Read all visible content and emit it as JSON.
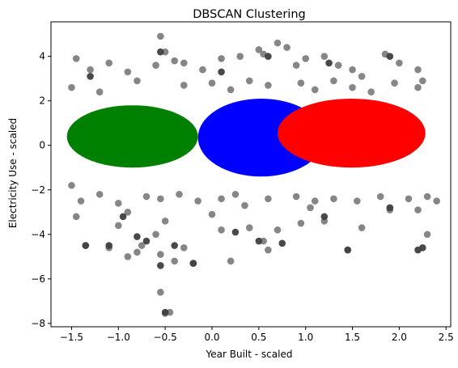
{
  "chart_data": {
    "type": "scatter",
    "title": "DBSCAN Clustering",
    "xlabel": "Year Built - scaled",
    "ylabel": "Electricity Use - scaled",
    "xlim": [
      -1.72,
      2.55
    ],
    "ylim": [
      -8.15,
      5.55
    ],
    "xticks": [
      -1.5,
      -1.0,
      -0.5,
      0.0,
      0.5,
      1.0,
      1.5,
      2.0,
      2.5
    ],
    "xtick_labels": [
      "−1.5",
      "−1.0",
      "−0.5",
      "0.0",
      "0.5",
      "1.0",
      "1.5",
      "2.0",
      "2.5"
    ],
    "yticks": [
      -8,
      -6,
      -4,
      -2,
      0,
      2,
      4
    ],
    "ytick_labels": [
      "−8",
      "−6",
      "−4",
      "−2",
      "0",
      "2",
      "4"
    ],
    "grid": false,
    "series": [
      {
        "color": "#808080",
        "values": [
          [
            -1.45,
            3.9
          ],
          [
            -1.3,
            3.4
          ],
          [
            -1.1,
            3.7
          ],
          [
            -0.9,
            3.3
          ],
          [
            -0.6,
            3.6
          ],
          [
            -0.55,
            4.9
          ],
          [
            -0.5,
            4.2
          ],
          [
            -0.4,
            3.8
          ],
          [
            -0.3,
            3.7
          ],
          [
            -0.1,
            3.4
          ],
          [
            0.1,
            3.9
          ],
          [
            0.3,
            4.0
          ],
          [
            0.5,
            4.3
          ],
          [
            0.55,
            4.1
          ],
          [
            0.7,
            4.6
          ],
          [
            0.8,
            4.4
          ],
          [
            0.9,
            3.6
          ],
          [
            1.0,
            3.9
          ],
          [
            1.2,
            4.0
          ],
          [
            1.35,
            3.6
          ],
          [
            1.5,
            3.4
          ],
          [
            1.6,
            3.1
          ],
          [
            1.85,
            4.1
          ],
          [
            2.0,
            3.7
          ],
          [
            2.2,
            3.4
          ],
          [
            2.25,
            2.9
          ],
          [
            -1.5,
            2.6
          ],
          [
            -1.2,
            2.4
          ],
          [
            -0.8,
            2.9
          ],
          [
            -0.3,
            2.7
          ],
          [
            0.0,
            2.8
          ],
          [
            0.2,
            2.5
          ],
          [
            0.4,
            2.9
          ],
          [
            0.6,
            2.7
          ],
          [
            0.95,
            2.8
          ],
          [
            1.1,
            2.5
          ],
          [
            1.3,
            2.9
          ],
          [
            1.5,
            2.6
          ],
          [
            1.7,
            2.4
          ],
          [
            1.95,
            2.8
          ],
          [
            2.2,
            2.6
          ],
          [
            -1.5,
            -1.8
          ],
          [
            -1.4,
            -2.5
          ],
          [
            -1.2,
            -2.2
          ],
          [
            -1.0,
            -2.6
          ],
          [
            -0.9,
            -3.0
          ],
          [
            -0.7,
            -2.3
          ],
          [
            -0.55,
            -2.4
          ],
          [
            -0.35,
            -2.2
          ],
          [
            -0.15,
            -2.5
          ],
          [
            0.1,
            -2.4
          ],
          [
            0.25,
            -2.2
          ],
          [
            0.35,
            -2.7
          ],
          [
            0.6,
            -2.4
          ],
          [
            0.9,
            -2.3
          ],
          [
            1.1,
            -2.5
          ],
          [
            1.3,
            -2.4
          ],
          [
            1.55,
            -2.5
          ],
          [
            1.8,
            -2.3
          ],
          [
            2.1,
            -2.4
          ],
          [
            2.3,
            -2.3
          ],
          [
            2.4,
            -2.5
          ],
          [
            -1.45,
            -3.2
          ],
          [
            -1.35,
            -4.5
          ],
          [
            -1.1,
            -4.6
          ],
          [
            -1.0,
            -3.6
          ],
          [
            -0.9,
            -5.0
          ],
          [
            -0.8,
            -4.8
          ],
          [
            -0.75,
            -4.5
          ],
          [
            -0.6,
            -4.0
          ],
          [
            -0.55,
            -4.9
          ],
          [
            -0.5,
            -3.4
          ],
          [
            -0.4,
            -5.2
          ],
          [
            -0.3,
            -4.6
          ],
          [
            -0.2,
            -5.3
          ],
          [
            0.0,
            -3.1
          ],
          [
            0.1,
            -3.8
          ],
          [
            0.2,
            -5.2
          ],
          [
            0.4,
            -3.7
          ],
          [
            0.55,
            -4.3
          ],
          [
            0.6,
            -4.7
          ],
          [
            0.7,
            -3.8
          ],
          [
            0.95,
            -3.5
          ],
          [
            1.05,
            -2.8
          ],
          [
            1.2,
            -3.4
          ],
          [
            1.45,
            -4.7
          ],
          [
            1.6,
            -3.7
          ],
          [
            1.9,
            -2.9
          ],
          [
            2.2,
            -2.9
          ],
          [
            2.3,
            -4.0
          ],
          [
            -0.55,
            -6.6
          ],
          [
            -0.45,
            -7.5
          ],
          [
            -0.5,
            -7.55
          ]
        ]
      },
      {
        "color": "#3f3f3f",
        "values": [
          [
            -1.3,
            3.1
          ],
          [
            -0.55,
            4.2
          ],
          [
            0.1,
            3.3
          ],
          [
            0.6,
            4.0
          ],
          [
            1.25,
            3.7
          ],
          [
            1.9,
            4.0
          ],
          [
            -1.35,
            -4.5
          ],
          [
            -1.1,
            -4.5
          ],
          [
            -0.95,
            -3.2
          ],
          [
            -0.8,
            -4.1
          ],
          [
            -0.7,
            -4.3
          ],
          [
            -0.55,
            -5.4
          ],
          [
            -0.4,
            -4.5
          ],
          [
            0.25,
            -3.9
          ],
          [
            0.5,
            -4.3
          ],
          [
            0.75,
            -4.4
          ],
          [
            1.2,
            -3.2
          ],
          [
            1.45,
            -4.7
          ],
          [
            1.9,
            -2.8
          ],
          [
            2.25,
            -4.6
          ],
          [
            2.2,
            -4.7
          ],
          [
            -0.2,
            -5.3
          ],
          [
            -0.5,
            -7.5
          ]
        ]
      }
    ],
    "clusters": [
      {
        "color": "#008000",
        "x_range": [
          -1.55,
          -0.15
        ],
        "y_range": [
          -1.0,
          1.8
        ]
      },
      {
        "color": "#0000ff",
        "x_range": [
          -0.15,
          1.2
        ],
        "y_range": [
          -1.4,
          2.1
        ]
      },
      {
        "color": "#ff0000",
        "x_range": [
          0.7,
          2.28
        ],
        "y_range": [
          -1.0,
          2.1
        ]
      }
    ]
  }
}
